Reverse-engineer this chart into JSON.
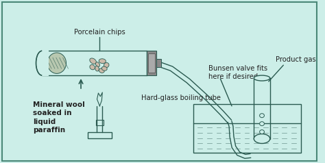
{
  "bg_color": "#cceee8",
  "border_color": "#4a8878",
  "line_color": "#2a5a50",
  "text_color": "#222222",
  "figsize": [
    4.74,
    2.38
  ],
  "dpi": 100,
  "labels": {
    "porcelain_chips": "Porcelain chips",
    "hard_glass": "Hard-glass boiling tube",
    "mineral_wool": "Mineral wool\nsoaked in\nliquid\nparaffin",
    "bunsen_valve": "Bunsen valve fits\nhere if desired",
    "product_gas": "Product gas"
  }
}
